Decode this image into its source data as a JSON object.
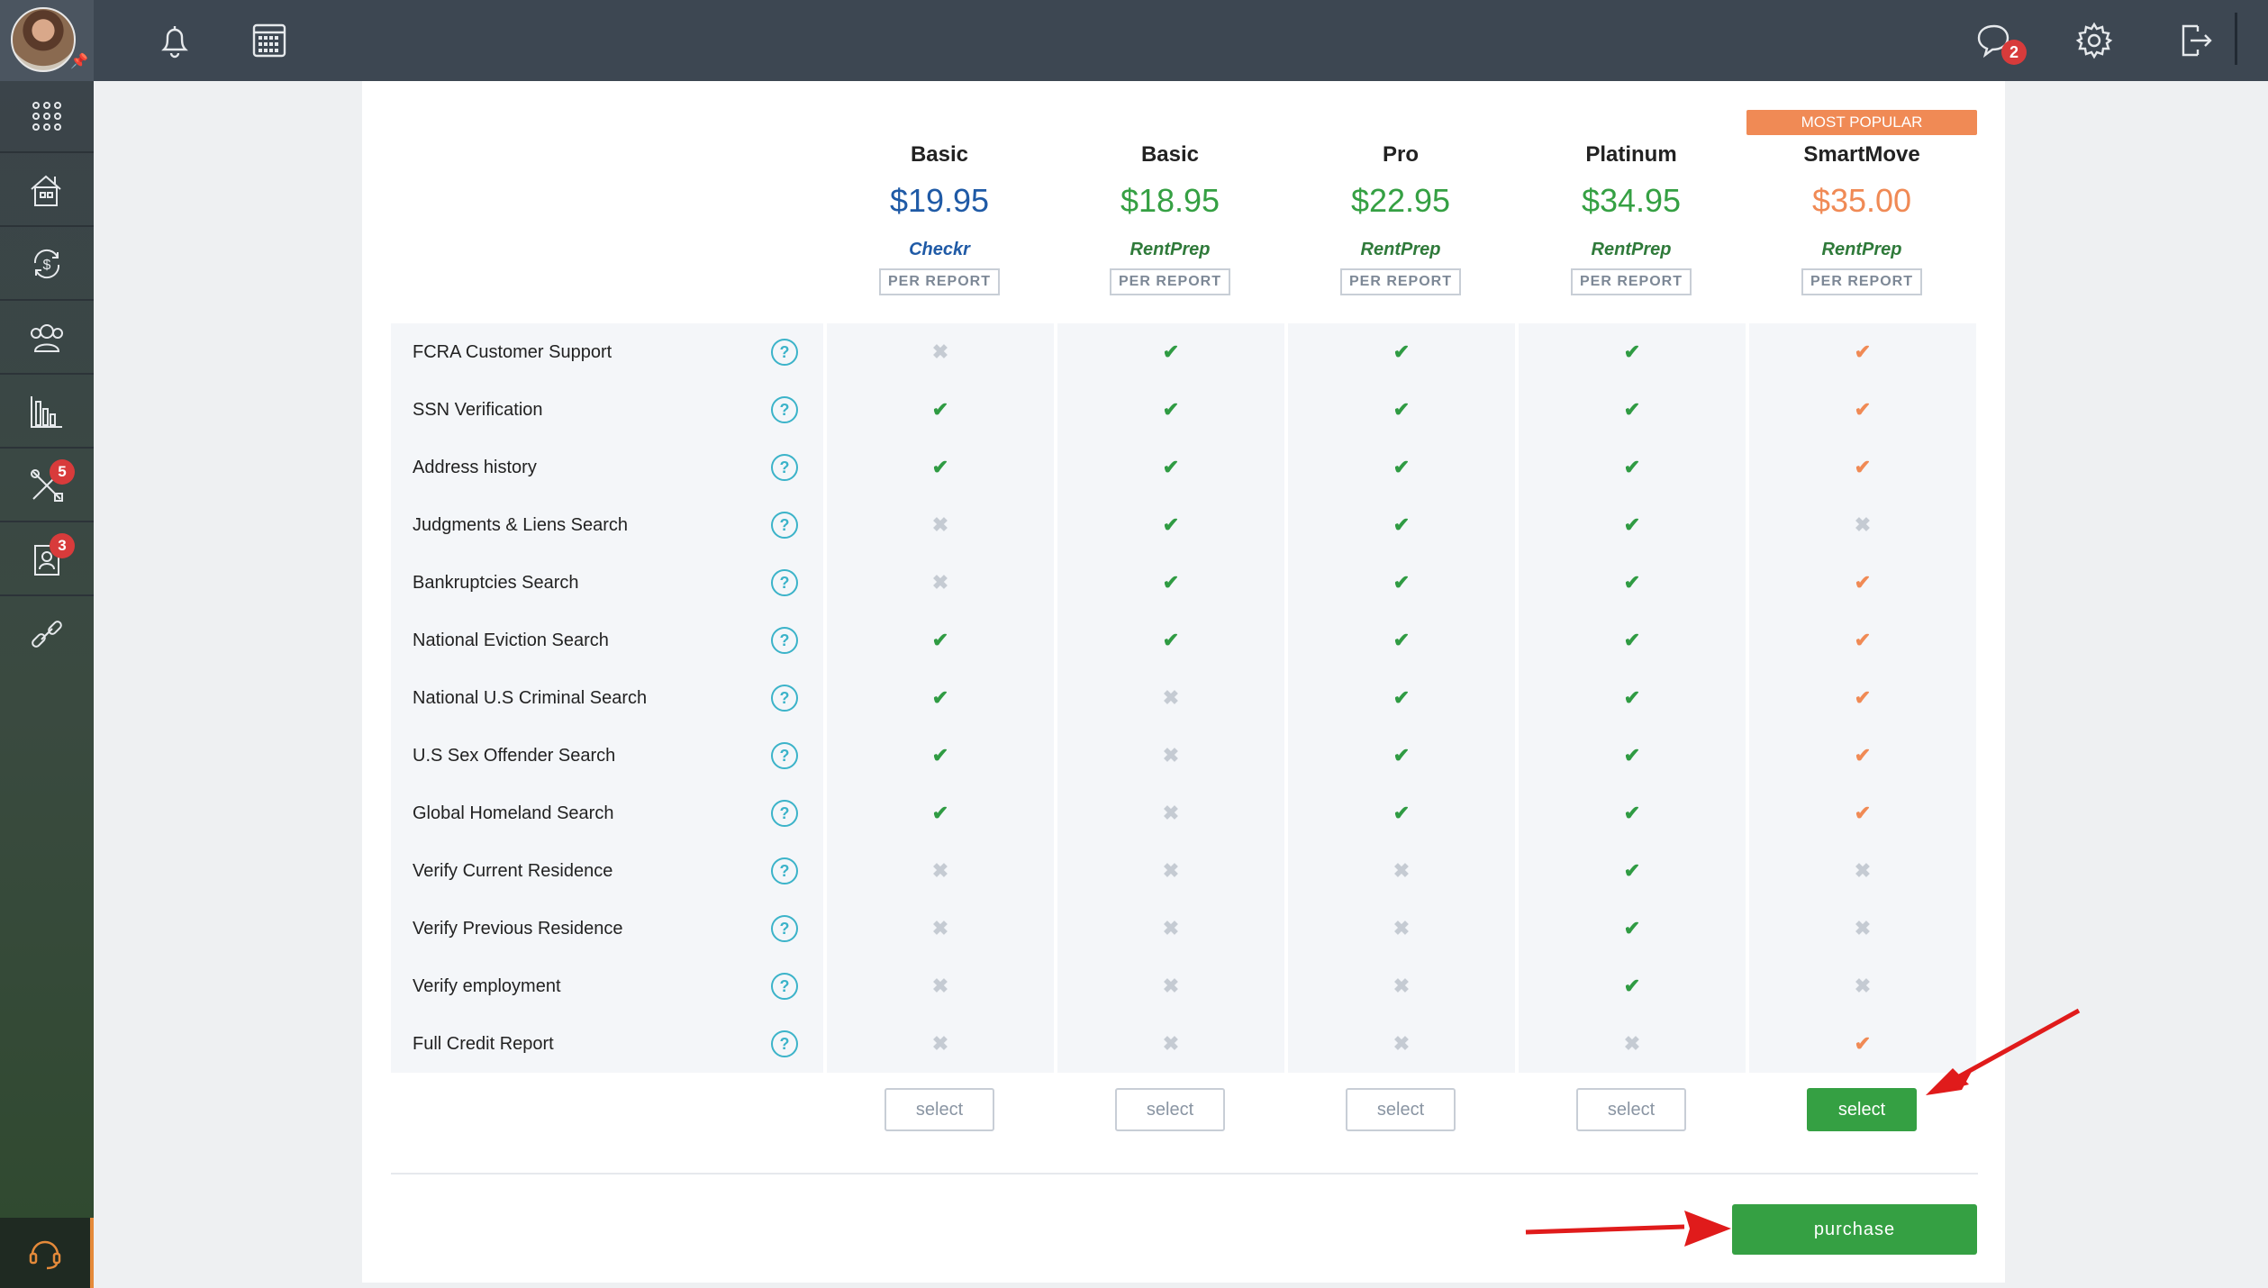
{
  "topbar": {
    "messages_badge": "2"
  },
  "sidebar": {
    "items": [
      {
        "name": "apps-grid-icon"
      },
      {
        "name": "properties-icon"
      },
      {
        "name": "payments-icon"
      },
      {
        "name": "contacts-icon"
      },
      {
        "name": "reports-icon"
      },
      {
        "name": "maintenance-icon",
        "badge": "5"
      },
      {
        "name": "applications-icon",
        "badge": "3"
      },
      {
        "name": "links-icon"
      }
    ]
  },
  "popular_label": "MOST POPULAR",
  "per_report_label": "PER REPORT",
  "plans": [
    {
      "name": "Basic",
      "price": "$19.95",
      "provider": "Checkr",
      "price_color": "#1f5aa6"
    },
    {
      "name": "Basic",
      "price": "$18.95",
      "provider": "RentPrep",
      "price_color": "#35a043"
    },
    {
      "name": "Pro",
      "price": "$22.95",
      "provider": "RentPrep",
      "price_color": "#35a043"
    },
    {
      "name": "Platinum",
      "price": "$34.95",
      "provider": "RentPrep",
      "price_color": "#35a043"
    },
    {
      "name": "SmartMove",
      "price": "$35.00",
      "provider": "RentPrep",
      "price_color": "#f08a55"
    }
  ],
  "features": [
    {
      "label": "FCRA Customer Support",
      "values": [
        false,
        true,
        true,
        true,
        true
      ]
    },
    {
      "label": "SSN Verification",
      "values": [
        true,
        true,
        true,
        true,
        true
      ]
    },
    {
      "label": "Address history",
      "values": [
        true,
        true,
        true,
        true,
        true
      ]
    },
    {
      "label": "Judgments & Liens Search",
      "values": [
        false,
        true,
        true,
        true,
        false
      ]
    },
    {
      "label": "Bankruptcies Search",
      "values": [
        false,
        true,
        true,
        true,
        true
      ]
    },
    {
      "label": "National Eviction Search",
      "values": [
        true,
        true,
        true,
        true,
        true
      ]
    },
    {
      "label": "National U.S Criminal Search",
      "values": [
        true,
        false,
        true,
        true,
        true
      ]
    },
    {
      "label": "U.S Sex Offender Search",
      "values": [
        true,
        false,
        true,
        true,
        true
      ]
    },
    {
      "label": "Global Homeland Search",
      "values": [
        true,
        false,
        true,
        true,
        true
      ]
    },
    {
      "label": "Verify Current Residence",
      "values": [
        false,
        false,
        false,
        true,
        false
      ]
    },
    {
      "label": "Verify Previous Residence",
      "values": [
        false,
        false,
        false,
        true,
        false
      ]
    },
    {
      "label": "Verify employment",
      "values": [
        false,
        false,
        false,
        true,
        false
      ]
    },
    {
      "label": "Full Credit Report",
      "values": [
        false,
        false,
        false,
        false,
        true
      ]
    }
  ],
  "select_label": "select",
  "selected_plan_index": 4,
  "purchase_label": "purchase",
  "colors": {
    "accent_green": "#35a043",
    "accent_orange": "#f08a55",
    "badge_red": "#d83b3b"
  }
}
